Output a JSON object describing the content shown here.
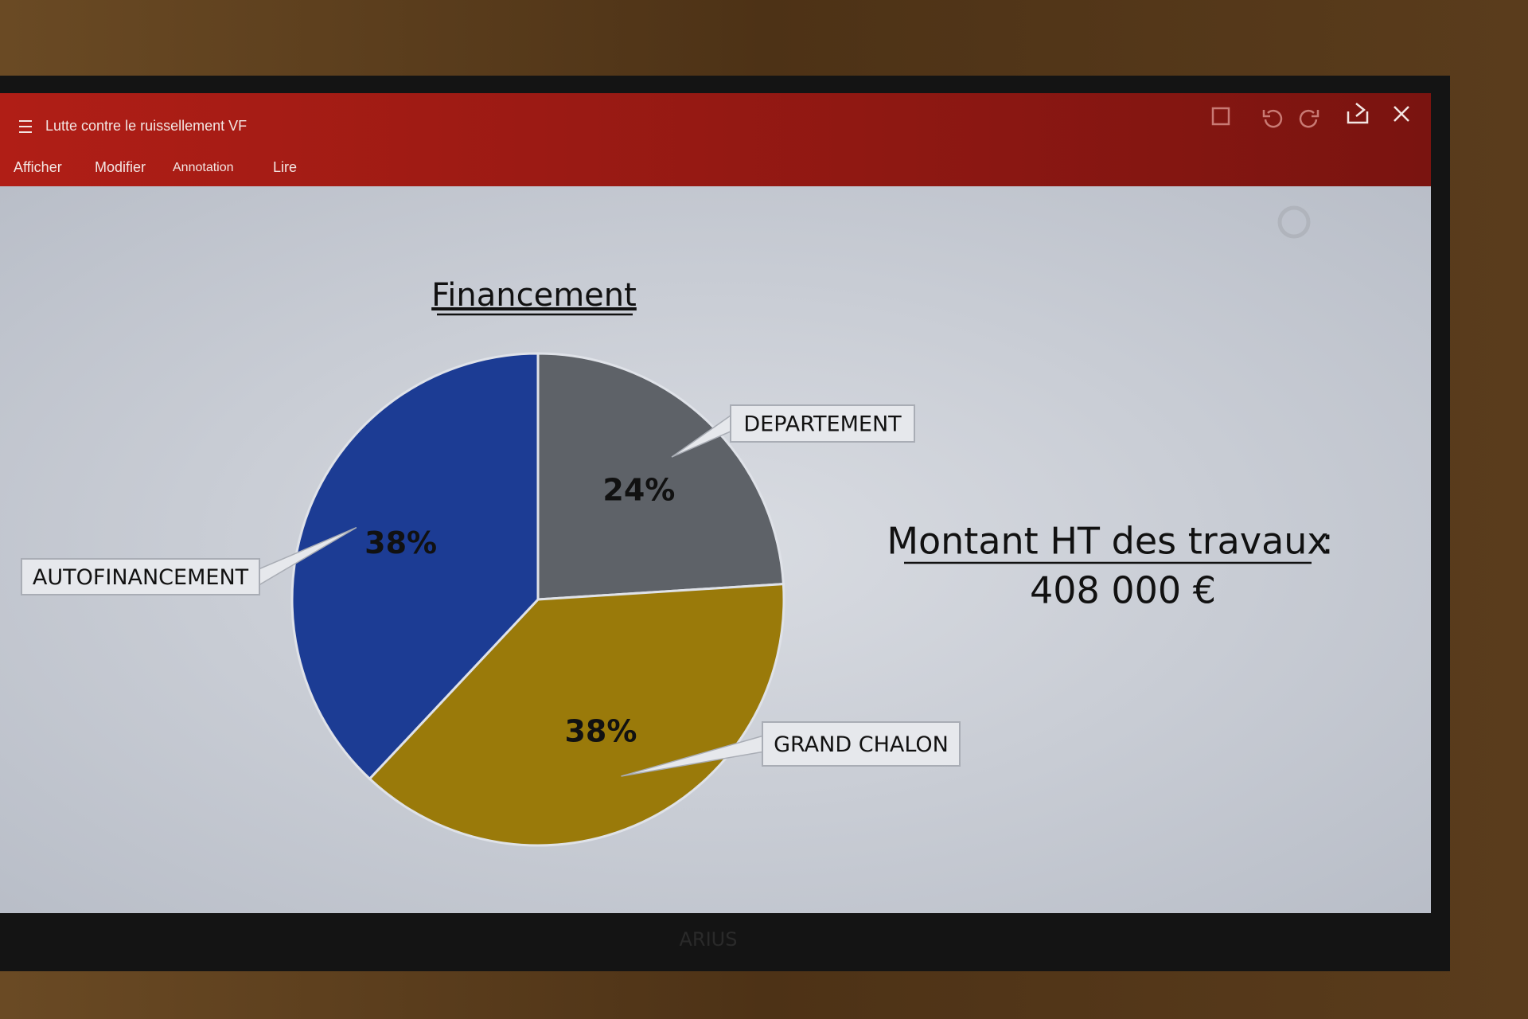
{
  "app": {
    "title": "Lutte contre le ruissellement VF",
    "menu": [
      "Afficher",
      "Modifier",
      "Annotation",
      "Lire"
    ]
  },
  "chart_data": {
    "type": "pie",
    "title": "Financement",
    "categories": [
      "DEPARTEMENT",
      "GRAND CHALON",
      "AUTOFINANCEMENT"
    ],
    "values": [
      24,
      38,
      38
    ],
    "value_labels": [
      "24%",
      "38%",
      "38%"
    ],
    "colors": [
      "#5e6268",
      "#9a7a0a",
      "#1c3c94"
    ]
  },
  "slide": {
    "amount_label": "Montant HT des travaux",
    "amount_colon": ":",
    "amount": "408 000 €"
  },
  "bezel": {
    "brand": "ARIUS"
  }
}
